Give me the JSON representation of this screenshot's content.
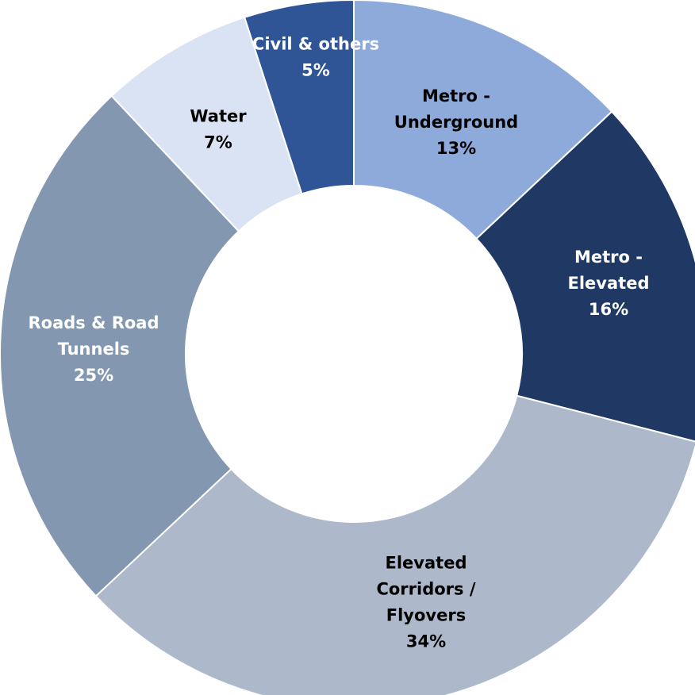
{
  "chart_data": {
    "type": "pie",
    "hole": true,
    "title": "",
    "categories": [
      "Metro - Underground",
      "Metro - Elevated",
      "Elevated Corridors / Flyovers",
      "Roads & Road Tunnels",
      "Water",
      "Civil & others"
    ],
    "values": [
      13,
      16,
      34,
      25,
      7,
      5
    ],
    "data_labels": [
      "13%",
      "16%",
      "34%",
      "25%",
      "7%",
      "5%"
    ],
    "label_lines": [
      [
        "Metro -",
        "Underground"
      ],
      [
        "Metro -",
        "Elevated"
      ],
      [
        "Elevated",
        "Corridors /",
        "Flyovers"
      ],
      [
        "Roads & Road",
        "Tunnels"
      ],
      [
        "Water"
      ],
      [
        "Civil & others"
      ]
    ],
    "colors": [
      "#8eaadb",
      "#203864",
      "#adb9ca",
      "#8497b0",
      "#dae3f3",
      "#2f5597"
    ],
    "label_colors": [
      "#000000",
      "#ffffff",
      "#000000",
      "#ffffff",
      "#000000",
      "#ffffff"
    ],
    "start_angle": "12 o'clock",
    "direction": "clockwise",
    "legend": "none"
  }
}
